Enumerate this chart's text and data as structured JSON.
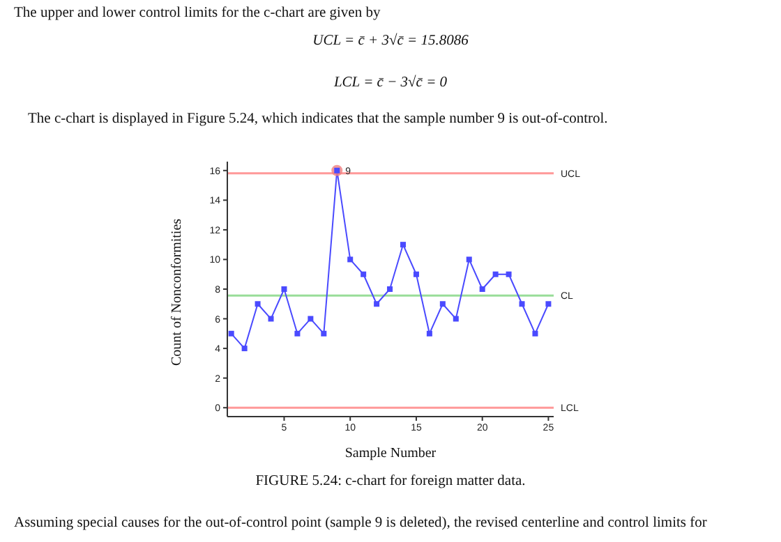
{
  "chart_data": {
    "type": "line",
    "xlabel": "Sample Number",
    "ylabel": "Count of Nonconformities",
    "x": [
      1,
      2,
      3,
      4,
      5,
      6,
      7,
      8,
      9,
      10,
      11,
      12,
      13,
      14,
      15,
      16,
      17,
      18,
      19,
      20,
      21,
      22,
      23,
      24,
      25
    ],
    "series": [
      {
        "color": "#4a4aff",
        "marker": "square",
        "values": [
          5,
          4,
          7,
          6,
          8,
          5,
          6,
          5,
          16,
          10,
          9,
          7,
          8,
          11,
          9,
          5,
          7,
          6,
          10,
          8,
          9,
          9,
          7,
          5,
          7
        ]
      },
      {
        "type": "scatter",
        "x": [
          9
        ],
        "values": [
          16
        ],
        "color": "#f08080",
        "marker": "circle"
      }
    ],
    "xlim": [
      0.7,
      25.4
    ],
    "xticks": [
      5,
      10,
      15,
      20,
      25
    ],
    "ylim": [
      -0.6,
      16.6
    ],
    "yticks": [
      0,
      2,
      4,
      6,
      8,
      10,
      12,
      14,
      16
    ],
    "ref_lines": [
      {
        "axis": "y",
        "value": 15.8086,
        "label": "UCL",
        "color": "#ff9999"
      },
      {
        "axis": "y",
        "value": 7.56,
        "label": "CL",
        "color": "#99dd99"
      },
      {
        "axis": "y",
        "value": 0,
        "label": "LCL",
        "color": "#ff9999"
      }
    ],
    "annotations": [
      "The upper and lower control limits for the c-chart are given by",
      "UCL = c̄ + 3√c̄ = 15.8086",
      "LCL = c̄ − 3√c̄ = 0",
      "The c-chart is displayed in Figure 5.24, which indicates that the sample number 9 is out-of-control.",
      {
        "text": "9",
        "x": 9,
        "y": 16
      },
      "FIGURE 5.24: c-chart for foreign matter data.",
      "Assuming special causes for the out-of-control point (sample 9 is deleted), the revised centerline and control limits for"
    ]
  }
}
